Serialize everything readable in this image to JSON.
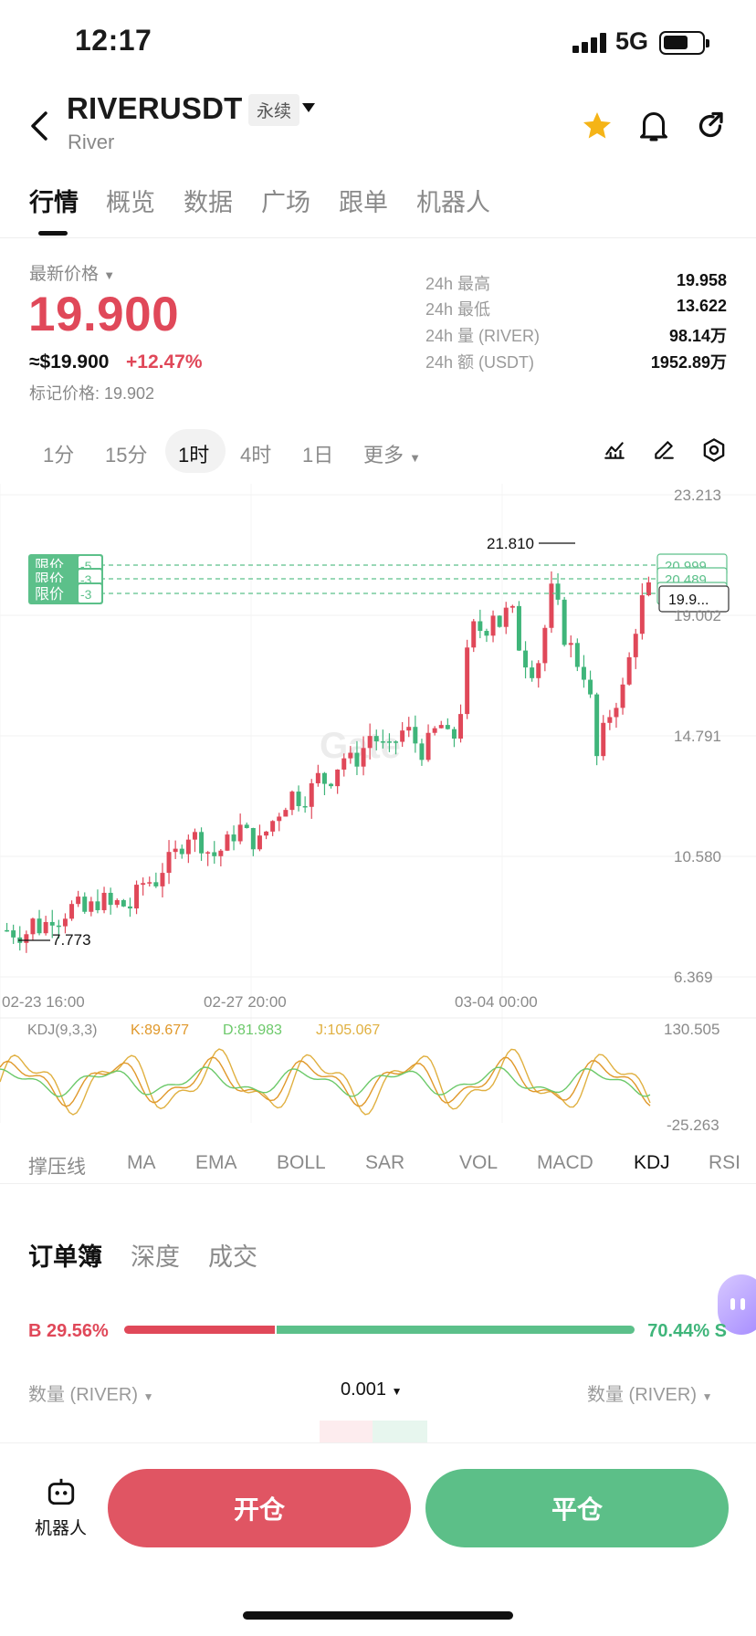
{
  "status_bar": {
    "time": "12:17",
    "network": "5G"
  },
  "header": {
    "pair": "RIVERUSDT",
    "contract_type": "永续",
    "coin_name": "River",
    "favorite_color": "#f5b417"
  },
  "tabs": [
    "行情",
    "概览",
    "数据",
    "广场",
    "跟单",
    "机器人"
  ],
  "price": {
    "latest_label": "最新价格",
    "last": "19.900",
    "usd": "≈$19.900",
    "change_pct": "+12.47%",
    "mark": "标记价格: 19.902"
  },
  "stats": [
    {
      "label": "24h  最高",
      "value": "19.958"
    },
    {
      "label": "24h  最低",
      "value": "13.622"
    },
    {
      "label": "24h  量 (RIVER)",
      "value": "98.14万"
    },
    {
      "label": "24h  额 (USDT)",
      "value": "1952.89万"
    }
  ],
  "timeframes": [
    "1分",
    "15分",
    "1时",
    "4时",
    "1日",
    "更多"
  ],
  "active_timeframe": "1时",
  "chart_data": {
    "type": "candlestick",
    "y_axis_labels": [
      "23.213",
      "19.002",
      "14.791",
      "10.580",
      "6.369"
    ],
    "x_axis_labels": [
      "02-23 16:00",
      "02-27 20:00",
      "03-04 00:00"
    ],
    "ylim": [
      6.369,
      23.213
    ],
    "high_marker": "21.810",
    "low_marker": "7.773",
    "current_price_tag": "19.9...",
    "limit_orders": [
      {
        "label": "限价",
        "count": "-5",
        "price": "20.999"
      },
      {
        "label": "限价",
        "count": "-3",
        "price": "20.489"
      },
      {
        "label": "限价",
        "count": "-3",
        "price": "19.9..."
      }
    ],
    "up_color": "#e04859",
    "down_color": "#3fb57a",
    "watermark": "Gate",
    "close_series": [
      8.0,
      7.9,
      7.8,
      8.3,
      8.0,
      8.5,
      8.4,
      8.7,
      8.9,
      8.6,
      8.9,
      9.1,
      8.8,
      9.0,
      8.7,
      9.3,
      9.8,
      9.6,
      10.2,
      10.5,
      10.9,
      11.4,
      11.2,
      10.8,
      10.6,
      10.9,
      11.3,
      11.6,
      11.2,
      11.0,
      11.5,
      12.0,
      12.4,
      12.8,
      12.5,
      12.9,
      13.4,
      13.1,
      13.7,
      14.1,
      13.8,
      14.3,
      14.9,
      14.5,
      14.2,
      14.7,
      15.1,
      14.6,
      14.2,
      14.8,
      15.2,
      14.6,
      14.9,
      17.5,
      18.8,
      18.3,
      19.2,
      18.6,
      19.5,
      18.0,
      17.3,
      17.0,
      18.5,
      20.2,
      18.4,
      17.9,
      17.2,
      16.8,
      14.0,
      15.2,
      15.9,
      16.4,
      17.8,
      19.4,
      19.9
    ],
    "kdj": {
      "label": "KDJ(9,3,3)",
      "k": "K:89.677",
      "d": "D:81.983",
      "j": "J:105.067",
      "ymax": "130.505",
      "ymin": "-25.263",
      "k_color": "#e0982a",
      "d_color": "#6cc96a",
      "j_color": "#e0b040"
    }
  },
  "indicators": [
    "撑压线",
    "MA",
    "EMA",
    "BOLL",
    "SAR",
    "VOL",
    "MACD",
    "KDJ",
    "RSI"
  ],
  "active_indicator": "KDJ",
  "orderbook": {
    "tabs": [
      "订单簿",
      "深度",
      "成交"
    ],
    "buy_pct": "B 29.56%",
    "sell_pct": "70.44% S",
    "buy_ratio": 0.2956,
    "col_left": "数量 (RIVER)",
    "precision": "0.001",
    "col_right": "数量 (RIVER)"
  },
  "bottom": {
    "robot_label": "机器人",
    "open": "开仓",
    "close": "平仓"
  }
}
